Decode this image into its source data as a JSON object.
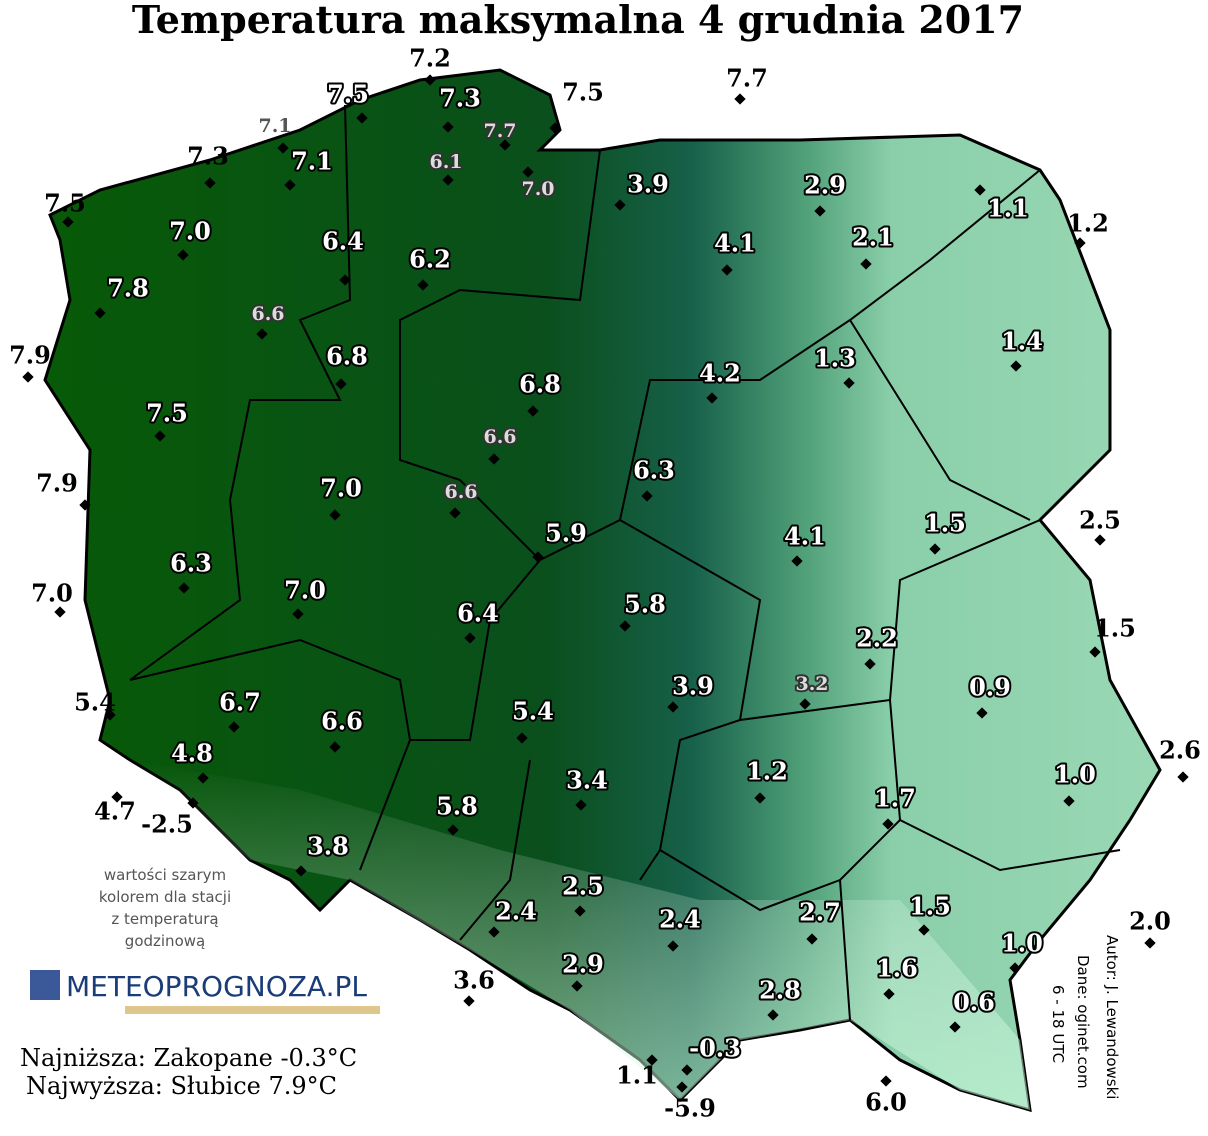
{
  "title": "Temperatura maksymalna 4 grudnia 2017",
  "note": [
    "wartości szarym",
    "kolorem dla stacji",
    "z temperaturą",
    "godzinową"
  ],
  "logo": "METEOPROGNOZA.PL",
  "lowest": "Najniższa: Zakopane -0.3°C",
  "highest": "Najwyższa: Słubice 7.9°C",
  "credits": [
    "Autor: J. Lewandowski",
    "Dane: oginet.com",
    "6 - 18 UTC"
  ],
  "stations": [
    {
      "label": "7.2"
    },
    {
      "label": "7.5"
    },
    {
      "label": "7.3"
    },
    {
      "label": "7.1",
      "hourly": true
    },
    {
      "label": "7.7",
      "hourly": true
    },
    {
      "label": "6.1",
      "hourly": true
    },
    {
      "label": "7.5"
    },
    {
      "label": "7.7"
    },
    {
      "label": "7.3"
    },
    {
      "label": "7.1"
    },
    {
      "label": "7.0",
      "hourly": true
    },
    {
      "label": "7.5"
    },
    {
      "label": "7.0"
    },
    {
      "label": "6.4"
    },
    {
      "label": "6.2"
    },
    {
      "label": "3.9"
    },
    {
      "label": "2.9"
    },
    {
      "label": "4.1"
    },
    {
      "label": "2.1"
    },
    {
      "label": "1.1"
    },
    {
      "label": "1.2"
    },
    {
      "label": "7.8"
    },
    {
      "label": "6.6",
      "hourly": true
    },
    {
      "label": "6.8"
    },
    {
      "label": "6.8"
    },
    {
      "label": "4.2"
    },
    {
      "label": "1.3"
    },
    {
      "label": "1.4"
    },
    {
      "label": "7.9"
    },
    {
      "label": "7.5"
    },
    {
      "label": "6.6",
      "hourly": true
    },
    {
      "label": "6.3"
    },
    {
      "label": "7.9"
    },
    {
      "label": "7.0"
    },
    {
      "label": "6.6",
      "hourly": true
    },
    {
      "label": "5.9"
    },
    {
      "label": "4.1"
    },
    {
      "label": "1.5"
    },
    {
      "label": "2.5"
    },
    {
      "label": "6.3"
    },
    {
      "label": "7.0"
    },
    {
      "label": "7.0"
    },
    {
      "label": "6.4"
    },
    {
      "label": "5.8"
    },
    {
      "label": "1.5"
    },
    {
      "label": "2.2"
    },
    {
      "label": "5.4"
    },
    {
      "label": "6.7"
    },
    {
      "label": "3.9"
    },
    {
      "label": "3.2",
      "hourly": true
    },
    {
      "label": "0.9"
    },
    {
      "label": "6.6"
    },
    {
      "label": "5.4"
    },
    {
      "label": "2.6"
    },
    {
      "label": "4.8"
    },
    {
      "label": "1.2"
    },
    {
      "label": "1.0"
    },
    {
      "label": "1.7"
    },
    {
      "label": "3.4"
    },
    {
      "label": "4.7"
    },
    {
      "label": "-2.5"
    },
    {
      "label": "5.8"
    },
    {
      "label": "3.8"
    },
    {
      "label": "2.5"
    },
    {
      "label": "2.4"
    },
    {
      "label": "2.4"
    },
    {
      "label": "2.7"
    },
    {
      "label": "1.5"
    },
    {
      "label": "1.0"
    },
    {
      "label": "2.0"
    },
    {
      "label": "3.6"
    },
    {
      "label": "2.9"
    },
    {
      "label": "1.6"
    },
    {
      "label": "2.8"
    },
    {
      "label": "0.6"
    },
    {
      "label": "-0.3"
    },
    {
      "label": "1.1"
    },
    {
      "label": "-5.9"
    },
    {
      "label": "6.0"
    }
  ]
}
